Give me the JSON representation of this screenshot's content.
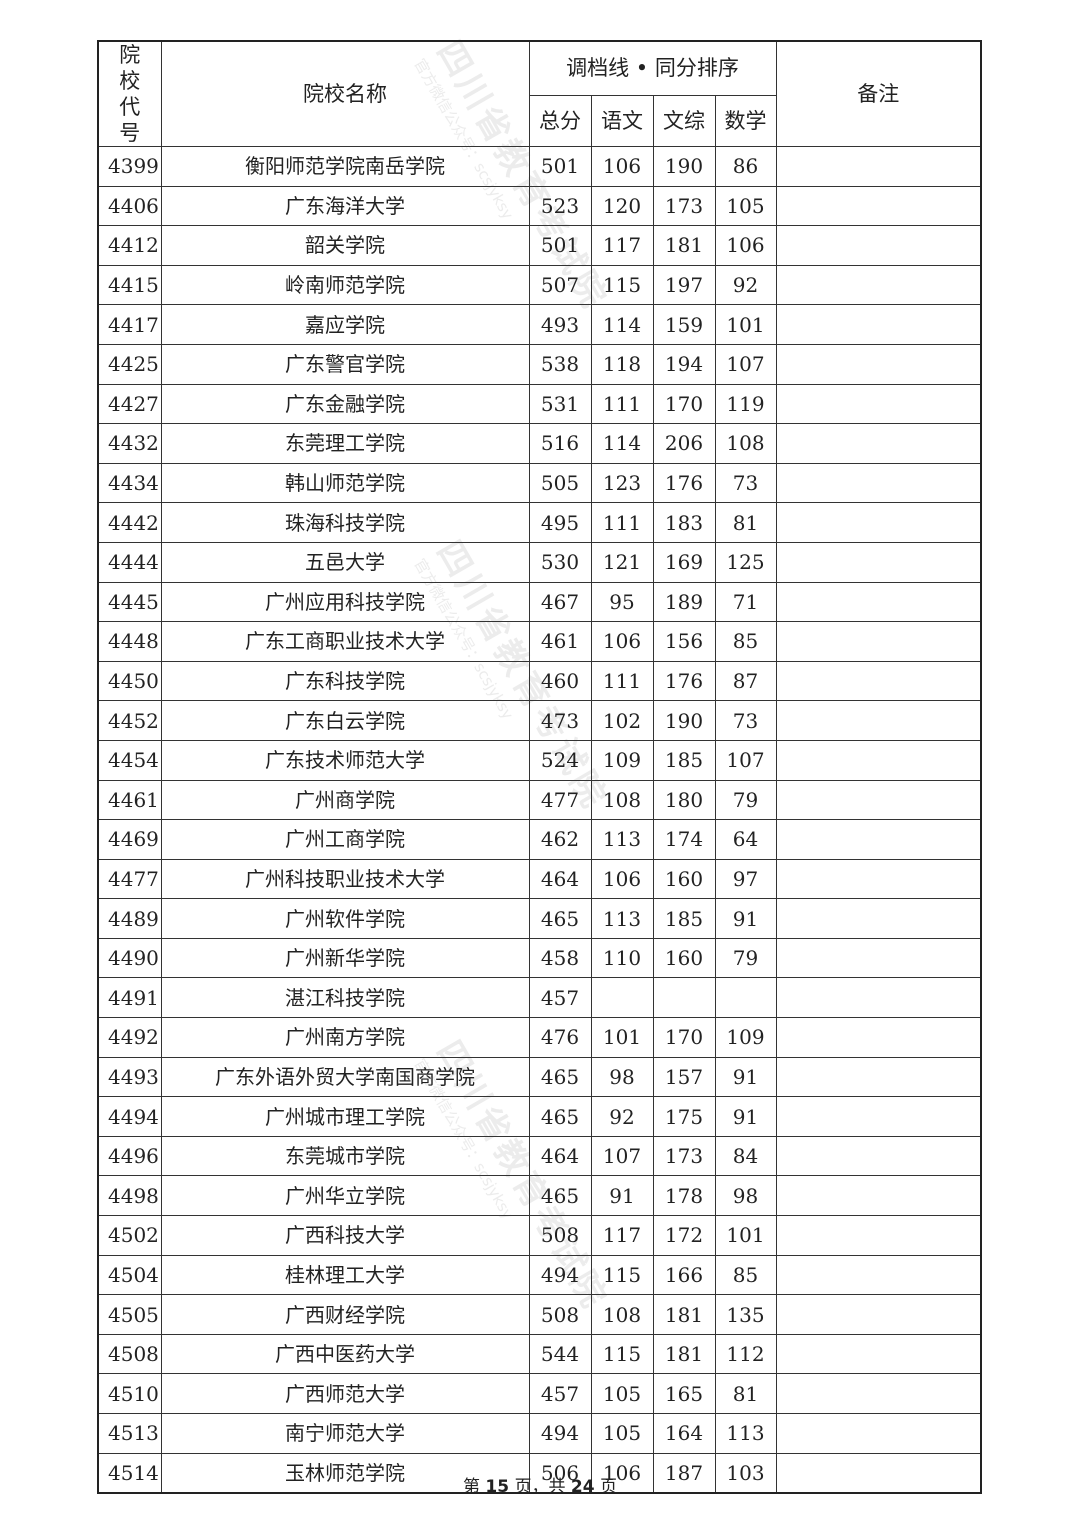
{
  "header": {
    "code_label": "院校代号",
    "name_label": "院校名称",
    "group_label": "调档线 • 同分排序",
    "total_label": "总分",
    "chinese_label": "语文",
    "wenzong_label": "文综",
    "math_label": "数学",
    "notes_label": "备注"
  },
  "rows": [
    {
      "code": "4399",
      "name": "衡阳师范学院南岳学院",
      "total": "501",
      "chinese": "106",
      "wenzong": "190",
      "math": "86"
    },
    {
      "code": "4406",
      "name": "广东海洋大学",
      "total": "523",
      "chinese": "120",
      "wenzong": "173",
      "math": "105"
    },
    {
      "code": "4412",
      "name": "韶关学院",
      "total": "501",
      "chinese": "117",
      "wenzong": "181",
      "math": "106"
    },
    {
      "code": "4415",
      "name": "岭南师范学院",
      "total": "507",
      "chinese": "115",
      "wenzong": "197",
      "math": "92"
    },
    {
      "code": "4417",
      "name": "嘉应学院",
      "total": "493",
      "chinese": "114",
      "wenzong": "159",
      "math": "101"
    },
    {
      "code": "4425",
      "name": "广东警官学院",
      "total": "538",
      "chinese": "118",
      "wenzong": "194",
      "math": "107"
    },
    {
      "code": "4427",
      "name": "广东金融学院",
      "total": "531",
      "chinese": "111",
      "wenzong": "170",
      "math": "119"
    },
    {
      "code": "4432",
      "name": "东莞理工学院",
      "total": "516",
      "chinese": "114",
      "wenzong": "206",
      "math": "108"
    },
    {
      "code": "4434",
      "name": "韩山师范学院",
      "total": "505",
      "chinese": "123",
      "wenzong": "176",
      "math": "73"
    },
    {
      "code": "4442",
      "name": "珠海科技学院",
      "total": "495",
      "chinese": "111",
      "wenzong": "183",
      "math": "81"
    },
    {
      "code": "4444",
      "name": "五邑大学",
      "total": "530",
      "chinese": "121",
      "wenzong": "169",
      "math": "125"
    },
    {
      "code": "4445",
      "name": "广州应用科技学院",
      "total": "467",
      "chinese": "95",
      "wenzong": "189",
      "math": "71"
    },
    {
      "code": "4448",
      "name": "广东工商职业技术大学",
      "total": "461",
      "chinese": "106",
      "wenzong": "156",
      "math": "85"
    },
    {
      "code": "4450",
      "name": "广东科技学院",
      "total": "460",
      "chinese": "111",
      "wenzong": "176",
      "math": "87"
    },
    {
      "code": "4452",
      "name": "广东白云学院",
      "total": "473",
      "chinese": "102",
      "wenzong": "190",
      "math": "73"
    },
    {
      "code": "4454",
      "name": "广东技术师范大学",
      "total": "524",
      "chinese": "109",
      "wenzong": "185",
      "math": "107"
    },
    {
      "code": "4461",
      "name": "广州商学院",
      "total": "477",
      "chinese": "108",
      "wenzong": "180",
      "math": "79"
    },
    {
      "code": "4469",
      "name": "广州工商学院",
      "total": "462",
      "chinese": "113",
      "wenzong": "174",
      "math": "64"
    },
    {
      "code": "4477",
      "name": "广州科技职业技术大学",
      "total": "464",
      "chinese": "106",
      "wenzong": "160",
      "math": "97"
    },
    {
      "code": "4489",
      "name": "广州软件学院",
      "total": "465",
      "chinese": "113",
      "wenzong": "185",
      "math": "91"
    },
    {
      "code": "4490",
      "name": "广州新华学院",
      "total": "458",
      "chinese": "110",
      "wenzong": "160",
      "math": "79"
    },
    {
      "code": "4491",
      "name": "湛江科技学院",
      "total": "457",
      "chinese": "",
      "wenzong": "",
      "math": ""
    },
    {
      "code": "4492",
      "name": "广州南方学院",
      "total": "476",
      "chinese": "101",
      "wenzong": "170",
      "math": "109"
    },
    {
      "code": "4493",
      "name": "广东外语外贸大学南国商学院",
      "total": "465",
      "chinese": "98",
      "wenzong": "157",
      "math": "91"
    },
    {
      "code": "4494",
      "name": "广州城市理工学院",
      "total": "465",
      "chinese": "92",
      "wenzong": "175",
      "math": "91"
    },
    {
      "code": "4496",
      "name": "东莞城市学院",
      "total": "464",
      "chinese": "107",
      "wenzong": "173",
      "math": "84"
    },
    {
      "code": "4498",
      "name": "广州华立学院",
      "total": "465",
      "chinese": "91",
      "wenzong": "178",
      "math": "98"
    },
    {
      "code": "4502",
      "name": "广西科技大学",
      "total": "508",
      "chinese": "117",
      "wenzong": "172",
      "math": "101"
    },
    {
      "code": "4504",
      "name": "桂林理工大学",
      "total": "494",
      "chinese": "115",
      "wenzong": "166",
      "math": "85"
    },
    {
      "code": "4505",
      "name": "广西财经学院",
      "total": "508",
      "chinese": "108",
      "wenzong": "181",
      "math": "135"
    },
    {
      "code": "4508",
      "name": "广西中医药大学",
      "total": "544",
      "chinese": "115",
      "wenzong": "181",
      "math": "112"
    },
    {
      "code": "4510",
      "name": "广西师范大学",
      "total": "457",
      "chinese": "105",
      "wenzong": "165",
      "math": "81"
    },
    {
      "code": "4513",
      "name": "南宁师范大学",
      "total": "494",
      "chinese": "105",
      "wenzong": "164",
      "math": "113"
    },
    {
      "code": "4514",
      "name": "玉林师范学院",
      "total": "506",
      "chinese": "106",
      "wenzong": "187",
      "math": "103"
    }
  ],
  "footer": {
    "prefix": "第",
    "page": "15",
    "middle": "页，共",
    "total_pages": "24",
    "suffix": "页"
  },
  "watermark": {
    "org": "四川省教育考试院",
    "sub": "官方微信公众号：scsjyksy"
  }
}
